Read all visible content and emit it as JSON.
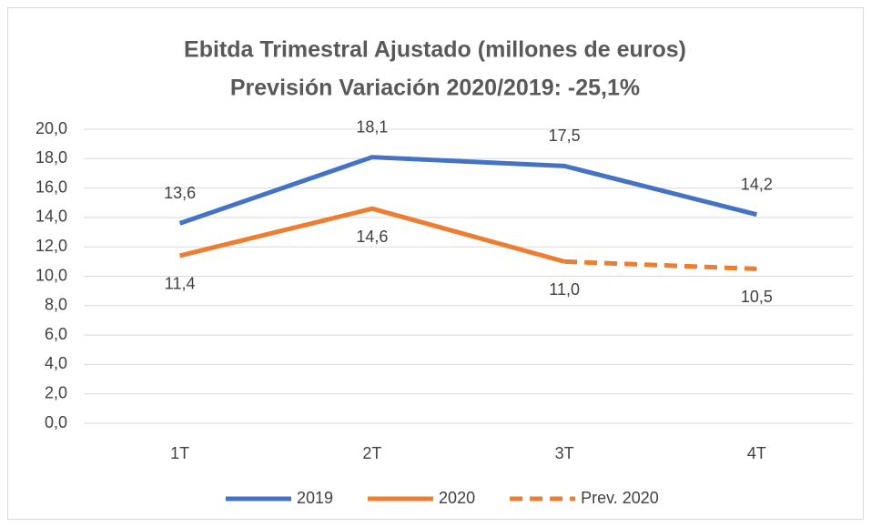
{
  "chart_data": {
    "type": "line",
    "title": "Ebitda Trimestral Ajustado (millones de euros)",
    "subtitle": "Previsión Variación 2020/2019: -25,1%",
    "categories": [
      "1T",
      "2T",
      "3T",
      "4T"
    ],
    "series": [
      {
        "name": "2019",
        "color": "#4472c4",
        "dash": false,
        "label_side": "above",
        "values": [
          13.6,
          18.1,
          17.5,
          14.2
        ],
        "value_labels": [
          "13,6",
          "18,1",
          "17,5",
          "14,2"
        ]
      },
      {
        "name": "2020",
        "color": "#ed7d31",
        "dash": false,
        "label_side": "below",
        "values": [
          11.4,
          14.6,
          11.0,
          null
        ],
        "value_labels": [
          "11,4",
          "14,6",
          "11,0",
          null
        ]
      },
      {
        "name": "Prev. 2020",
        "color": "#ed7d31",
        "dash": true,
        "label_side": "below",
        "values": [
          null,
          null,
          11.0,
          10.5
        ],
        "value_labels": [
          null,
          null,
          null,
          "10,5"
        ]
      }
    ],
    "ylim": [
      0,
      20
    ],
    "yticks": [
      {
        "value": 0,
        "label": "0,0"
      },
      {
        "value": 2,
        "label": "2,0"
      },
      {
        "value": 4,
        "label": "4,0"
      },
      {
        "value": 6,
        "label": "6,0"
      },
      {
        "value": 8,
        "label": "8,0"
      },
      {
        "value": 10,
        "label": "10,0"
      },
      {
        "value": 12,
        "label": "12,0"
      },
      {
        "value": 14,
        "label": "14,0"
      },
      {
        "value": 16,
        "label": "16,0"
      },
      {
        "value": 18,
        "label": "18,0"
      },
      {
        "value": 20,
        "label": "20,0"
      }
    ],
    "grid": true,
    "legend": "bottom"
  }
}
